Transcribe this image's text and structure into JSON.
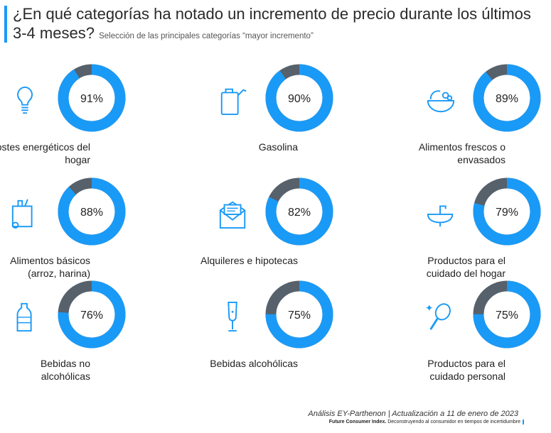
{
  "header": {
    "title": "¿En qué categorías ha notado un incremento de precio durante los últimos 3-4 meses?",
    "subtitle": "Selección de las principales categorías “mayor incremento”"
  },
  "colors": {
    "accent": "#1a9af7",
    "remainder": "#56616b"
  },
  "chart_data": {
    "type": "pie",
    "variant": "donut-grid",
    "title": "¿En qué categorías ha notado un incremento de precio durante los últimos 3-4 meses?",
    "categories": [
      "Costes energéticos del hogar",
      "Gasolina",
      "Alimentos frescos o envasados",
      "Alimentos básicos (arroz, harina)",
      "Alquileres e hipotecas",
      "Productos para el cuidado del hogar",
      "Bebidas no alcohólicas",
      "Bebidas alcohólicas",
      "Productos para el cuidado personal"
    ],
    "values": [
      91,
      90,
      89,
      88,
      82,
      79,
      76,
      75,
      75
    ],
    "value_labels": [
      "91%",
      "90%",
      "89%",
      "88%",
      "82%",
      "79%",
      "76%",
      "75%",
      "75%"
    ],
    "icons": [
      "lightbulb-icon",
      "fuel-can-icon",
      "fruit-bowl-icon",
      "grocery-bag-icon",
      "envelope-icon",
      "sink-icon",
      "water-bottle-icon",
      "champagne-glass-icon",
      "mirror-icon"
    ],
    "label_lines": [
      [
        "Costes energéticos del",
        "hogar"
      ],
      [
        "Gasolina"
      ],
      [
        "Alimentos frescos o",
        "envasados"
      ],
      [
        "Alimentos básicos",
        "(arroz, harina)"
      ],
      [
        "Alquileres e hipotecas"
      ],
      [
        "Productos para el",
        "cuidado del hogar"
      ],
      [
        "Bebidas no",
        "alcohólicas"
      ],
      [
        "Bebidas alcohólicas"
      ],
      [
        "Productos para el",
        "cuidado personal"
      ]
    ]
  },
  "footer": {
    "source": "Análisis EY-Parthenon | Actualización a 11 de enero de 2023",
    "brand": "Future Consumer Index.",
    "tagline": "Deconstruyendo al consumidor en tiempos de incertidumbre"
  }
}
